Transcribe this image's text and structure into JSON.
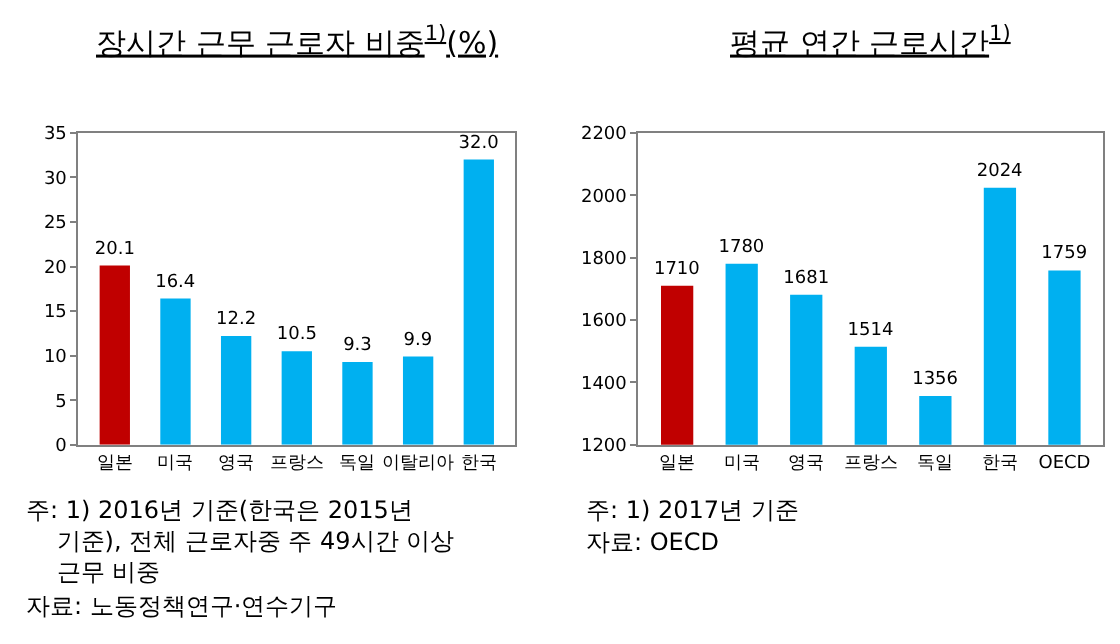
{
  "chart_data": [
    {
      "type": "bar",
      "title": "장시간 근무 근로자 비중$^{1)}$(%)",
      "categories": [
        "일본",
        "미국",
        "영국",
        "프랑스",
        "독일",
        "이탈리아",
        "한국"
      ],
      "values": [
        20.1,
        16.4,
        12.2,
        10.5,
        9.3,
        9.9,
        32.0
      ],
      "value_labels": [
        "20.1",
        "16.4",
        "12.2",
        "10.5",
        "9.3",
        "9.9",
        "32.0"
      ],
      "colors": [
        "#c00000",
        "#00b0f0",
        "#00b0f0",
        "#00b0f0",
        "#00b0f0",
        "#00b0f0",
        "#00b0f0"
      ],
      "ylim": [
        0,
        35
      ],
      "yticks": [
        0,
        5,
        10,
        15,
        20,
        25,
        30,
        35
      ],
      "annotations": [
        "주: 1) 2016년 기준(한국은 2015년 기준), 전체 근로자중 주 49시간 이상 근무 비중",
        "자료: 노동정책연구·연수기구"
      ]
    },
    {
      "type": "bar",
      "title": "평균 연간 근로시간$^{1)}$",
      "categories": [
        "일본",
        "미국",
        "영국",
        "프랑스",
        "독일",
        "한국",
        "OECD"
      ],
      "values": [
        1710,
        1780,
        1681,
        1514,
        1356,
        2024,
        1759
      ],
      "colors": [
        "#c00000",
        "#00b0f0",
        "#00b0f0",
        "#00b0f0",
        "#00b0f0",
        "#00b0f0",
        "#00b0f0"
      ],
      "data_labels": true,
      "ylim": [
        1200,
        2200
      ],
      "yticks": [
        1200,
        1400,
        1600,
        1800,
        2000,
        2200
      ],
      "annotations": [
        "주: 1) 2017년 기준",
        "자료: OECD"
      ]
    }
  ]
}
